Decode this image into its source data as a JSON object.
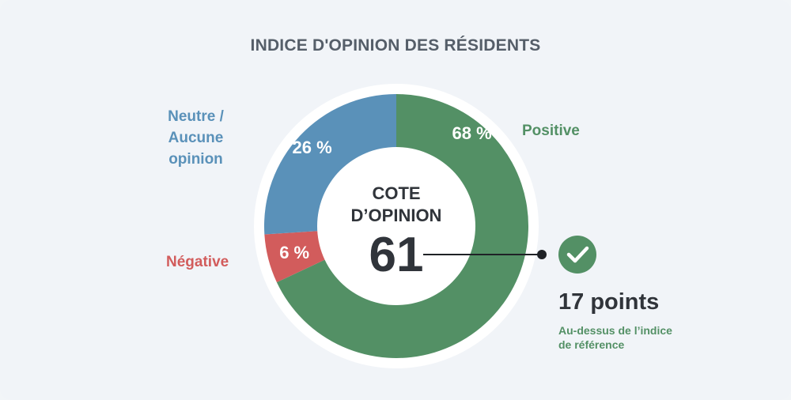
{
  "title": "INDICE D'OPINION DES RÉSIDENTS",
  "chart_data": {
    "type": "pie",
    "title": "INDICE D'OPINION DES RÉSIDENTS",
    "donut": true,
    "slices": [
      {
        "label": "Positive",
        "value": 68,
        "value_label": "68 %",
        "color": "#539065"
      },
      {
        "label": "Négative",
        "value": 6,
        "value_label": "6 %",
        "color": "#d25c5c"
      },
      {
        "label": "Neutre / Aucune opinion",
        "value": 26,
        "value_label": "26 %",
        "color": "#5a91b9"
      }
    ]
  },
  "labels": {
    "neutral_line1": "Neutre /",
    "neutral_line2": "Aucune opinion",
    "positive": "Positive",
    "negative": "Négative"
  },
  "center": {
    "line1": "COTE",
    "line2": "D’OPINION",
    "score": "61"
  },
  "benchmark": {
    "points": "17 points",
    "sub_line1": "Au-dessus de l’indice",
    "sub_line2": "de référence",
    "icon": "check-icon",
    "color": "#539065"
  }
}
